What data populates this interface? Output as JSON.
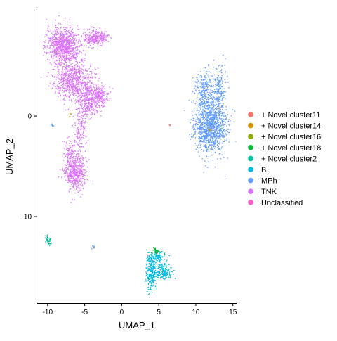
{
  "chart_data": {
    "type": "scatter",
    "xlabel": "UMAP_1",
    "ylabel": "UMAP_2",
    "xlim": [
      -11.5,
      15.5
    ],
    "ylim": [
      -18.6,
      10.5
    ],
    "xticks": [
      -10,
      -5,
      0,
      5,
      10,
      15
    ],
    "xtick_labels": [
      "-10",
      "-5",
      "0",
      "5",
      "10",
      "15"
    ],
    "yticks": [
      -10,
      0
    ],
    "ytick_labels": [
      "-10",
      "0"
    ],
    "grid": false,
    "legend_position": "right",
    "series": [
      {
        "name": "+ Novel cluster11",
        "color": "#F8766D",
        "clusters": [
          {
            "x": 6.5,
            "y": -0.9,
            "sx": 0.05,
            "sy": 0.05,
            "n": 3
          }
        ]
      },
      {
        "name": "+ Novel cluster14",
        "color": "#D39200",
        "clusters": [
          {
            "x": -7.0,
            "y": 0.1,
            "sx": 0.08,
            "sy": 0.08,
            "n": 5
          },
          {
            "x": 12.0,
            "y": -1.5,
            "sx": 0.1,
            "sy": 0.1,
            "n": 5
          }
        ]
      },
      {
        "name": "+ Novel cluster16",
        "color": "#93AA00",
        "clusters": [
          {
            "x": 11.8,
            "y": -1.4,
            "sx": 0.08,
            "sy": 0.08,
            "n": 4
          }
        ]
      },
      {
        "name": "+ Novel cluster18",
        "color": "#00BA38",
        "clusters": [
          {
            "x": 4.6,
            "y": -13.4,
            "sx": 0.25,
            "sy": 0.15,
            "n": 30
          }
        ]
      },
      {
        "name": "+ Novel cluster2",
        "color": "#00C19F",
        "clusters": [
          {
            "x": -10.0,
            "y": -12.2,
            "sx": 0.15,
            "sy": 0.25,
            "n": 18
          },
          {
            "x": -9.7,
            "y": -12.5,
            "sx": 0.2,
            "sy": 0.2,
            "n": 16
          }
        ]
      },
      {
        "name": "B",
        "color": "#00B9E3",
        "clusters": [
          {
            "x": 4.0,
            "y": -15.5,
            "sx": 0.35,
            "sy": 0.9,
            "n": 260
          },
          {
            "x": 5.7,
            "y": -15.5,
            "sx": 0.5,
            "sy": 0.35,
            "n": 150
          },
          {
            "x": 4.9,
            "y": -14.1,
            "sx": 0.5,
            "sy": 0.3,
            "n": 90
          }
        ]
      },
      {
        "name": "MPh",
        "color": "#619CFF",
        "clusters": [
          {
            "x": 12.0,
            "y": -1.0,
            "sx": 1.1,
            "sy": 1.3,
            "n": 1100
          },
          {
            "x": 11.2,
            "y": 2.5,
            "sx": 0.7,
            "sy": 1.0,
            "n": 260
          },
          {
            "x": 13.2,
            "y": 2.8,
            "sx": 0.4,
            "sy": 1.0,
            "n": 160
          },
          {
            "x": -9.4,
            "y": -0.9,
            "sx": 0.1,
            "sy": 0.1,
            "n": 10
          },
          {
            "x": -3.8,
            "y": -13.0,
            "sx": 0.1,
            "sy": 0.08,
            "n": 8
          }
        ]
      },
      {
        "name": "TNK",
        "color": "#DB72FB",
        "clusters": [
          {
            "x": -7.9,
            "y": 7.0,
            "sx": 1.1,
            "sy": 0.9,
            "n": 900
          },
          {
            "x": -3.5,
            "y": 7.8,
            "sx": 0.8,
            "sy": 0.35,
            "n": 300
          },
          {
            "x": -6.5,
            "y": 3.6,
            "sx": 1.3,
            "sy": 1.0,
            "n": 700
          },
          {
            "x": -4.5,
            "y": 1.5,
            "sx": 0.9,
            "sy": 0.8,
            "n": 350
          },
          {
            "x": -3.0,
            "y": 2.0,
            "sx": 0.6,
            "sy": 0.6,
            "n": 160
          },
          {
            "x": -5.6,
            "y": -1.5,
            "sx": 0.4,
            "sy": 1.0,
            "n": 120
          },
          {
            "x": -6.3,
            "y": -5.6,
            "sx": 0.7,
            "sy": 0.9,
            "n": 500
          },
          {
            "x": -7.0,
            "y": -3.6,
            "sx": 0.4,
            "sy": 0.7,
            "n": 90
          }
        ]
      },
      {
        "name": "Unclassified",
        "color": "#FF61C3",
        "clusters": []
      }
    ]
  }
}
